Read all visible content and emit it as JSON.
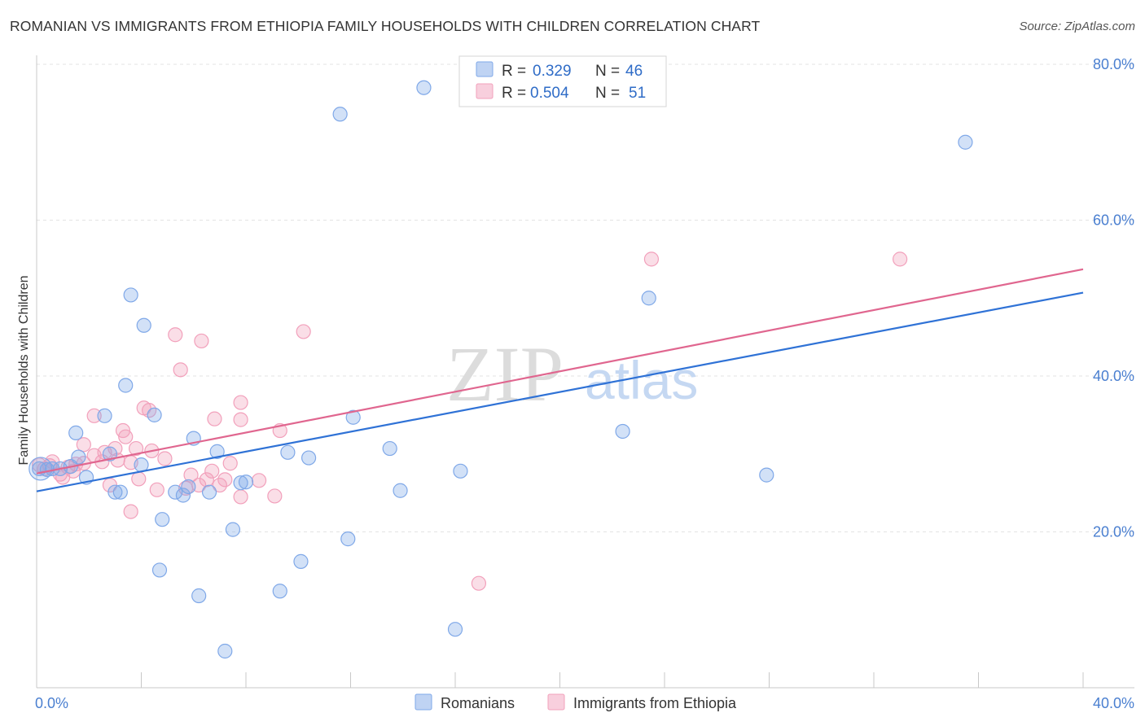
{
  "header": {
    "title": "ROMANIAN VS IMMIGRANTS FROM ETHIOPIA FAMILY HOUSEHOLDS WITH CHILDREN CORRELATION CHART",
    "source": "Source: ZipAtlas.com"
  },
  "watermark": {
    "zip": "ZIP",
    "atlas": "atlas"
  },
  "chart_data": {
    "type": "scatter",
    "title": "ROMANIAN VS IMMIGRANTS FROM ETHIOPIA FAMILY HOUSEHOLDS WITH CHILDREN CORRELATION CHART",
    "ylabel": "Family Households with Children",
    "xlim": [
      0,
      40
    ],
    "ylim": [
      0,
      80
    ],
    "y_ticks": [
      {
        "value": 20,
        "label": "20.0%"
      },
      {
        "value": 40,
        "label": "40.0%"
      },
      {
        "value": 60,
        "label": "60.0%"
      },
      {
        "value": 80,
        "label": "80.0%"
      }
    ],
    "x_tick_labels": [
      {
        "value": 0,
        "label": "0.0%"
      },
      {
        "value": 40,
        "label": "40.0%"
      }
    ],
    "x_minor_ticks": [
      4,
      8,
      12,
      16,
      20,
      24,
      28,
      32,
      36,
      40
    ],
    "grid": true,
    "legend_position": "top-center",
    "series": [
      {
        "name": "Romanians",
        "color": "#7fa8e8",
        "line_color": "#2f72d6",
        "r_label": "R =",
        "r": "0.329",
        "n_label": "N =",
        "n": "46",
        "trend": {
          "x0": 0,
          "y0": 25.2,
          "x1": 40,
          "y1": 50.7
        },
        "points": [
          [
            0.1,
            28.1
          ],
          [
            0.4,
            28.0
          ],
          [
            0.6,
            28.1
          ],
          [
            0.9,
            28.1
          ],
          [
            1.3,
            28.4
          ],
          [
            1.6,
            29.6
          ],
          [
            1.9,
            27.0
          ],
          [
            1.5,
            32.7
          ],
          [
            2.6,
            34.9
          ],
          [
            2.8,
            30.0
          ],
          [
            3.0,
            25.1
          ],
          [
            3.2,
            25.1
          ],
          [
            3.4,
            38.8
          ],
          [
            3.6,
            50.4
          ],
          [
            4.0,
            28.6
          ],
          [
            4.1,
            46.5
          ],
          [
            4.5,
            35.0
          ],
          [
            4.8,
            21.6
          ],
          [
            5.3,
            25.1
          ],
          [
            5.8,
            25.8
          ],
          [
            5.6,
            24.7
          ],
          [
            6.0,
            32.0
          ],
          [
            6.2,
            11.8
          ],
          [
            4.7,
            15.1
          ],
          [
            6.6,
            25.1
          ],
          [
            6.9,
            30.3
          ],
          [
            7.2,
            4.7
          ],
          [
            7.5,
            20.3
          ],
          [
            7.8,
            26.3
          ],
          [
            8.0,
            26.4
          ],
          [
            9.3,
            12.4
          ],
          [
            9.6,
            30.2
          ],
          [
            10.1,
            16.2
          ],
          [
            10.4,
            29.5
          ],
          [
            11.6,
            73.6
          ],
          [
            11.9,
            19.1
          ],
          [
            12.1,
            34.7
          ],
          [
            13.5,
            30.7
          ],
          [
            13.9,
            25.3
          ],
          [
            14.8,
            77.0
          ],
          [
            16.2,
            27.8
          ],
          [
            16.0,
            7.5
          ],
          [
            22.4,
            32.9
          ],
          [
            23.4,
            50.0
          ],
          [
            27.9,
            27.3
          ],
          [
            35.5,
            70.0
          ]
        ]
      },
      {
        "name": "Immigrants from Ethiopia",
        "color": "#f2a0bb",
        "line_color": "#e0668f",
        "r_label": "R =",
        "r": "0.504",
        "n_label": "N =",
        "n": "51",
        "trend": {
          "x0": 0,
          "y0": 27.5,
          "x1": 40,
          "y1": 53.7
        },
        "points": [
          [
            0.1,
            28.6
          ],
          [
            0.3,
            28.1
          ],
          [
            0.5,
            28.5
          ],
          [
            0.6,
            29.0
          ],
          [
            0.9,
            27.4
          ],
          [
            1.0,
            27.0
          ],
          [
            1.2,
            28.3
          ],
          [
            1.5,
            28.7
          ],
          [
            1.8,
            28.8
          ],
          [
            1.8,
            31.2
          ],
          [
            2.2,
            29.8
          ],
          [
            2.2,
            34.9
          ],
          [
            2.5,
            29.0
          ],
          [
            2.6,
            30.2
          ],
          [
            2.8,
            26.0
          ],
          [
            3.0,
            30.7
          ],
          [
            3.1,
            29.2
          ],
          [
            3.4,
            32.2
          ],
          [
            3.3,
            33.0
          ],
          [
            3.6,
            22.6
          ],
          [
            3.8,
            30.7
          ],
          [
            3.9,
            26.8
          ],
          [
            4.1,
            35.9
          ],
          [
            4.3,
            35.6
          ],
          [
            4.4,
            30.4
          ],
          [
            4.6,
            25.4
          ],
          [
            5.3,
            45.3
          ],
          [
            5.5,
            40.8
          ],
          [
            5.7,
            25.6
          ],
          [
            5.9,
            27.3
          ],
          [
            6.2,
            26.0
          ],
          [
            6.3,
            44.5
          ],
          [
            6.5,
            26.7
          ],
          [
            6.7,
            27.8
          ],
          [
            6.8,
            34.5
          ],
          [
            7.0,
            26.0
          ],
          [
            7.2,
            26.7
          ],
          [
            7.4,
            28.8
          ],
          [
            7.8,
            36.6
          ],
          [
            7.8,
            34.4
          ],
          [
            7.8,
            24.5
          ],
          [
            8.5,
            26.6
          ],
          [
            9.1,
            24.6
          ],
          [
            9.3,
            33.0
          ],
          [
            10.2,
            45.7
          ],
          [
            16.9,
            13.4
          ],
          [
            23.5,
            55.0
          ],
          [
            33.0,
            55.0
          ],
          [
            1.4,
            27.8
          ],
          [
            3.6,
            28.9
          ],
          [
            4.9,
            29.4
          ]
        ]
      }
    ]
  }
}
